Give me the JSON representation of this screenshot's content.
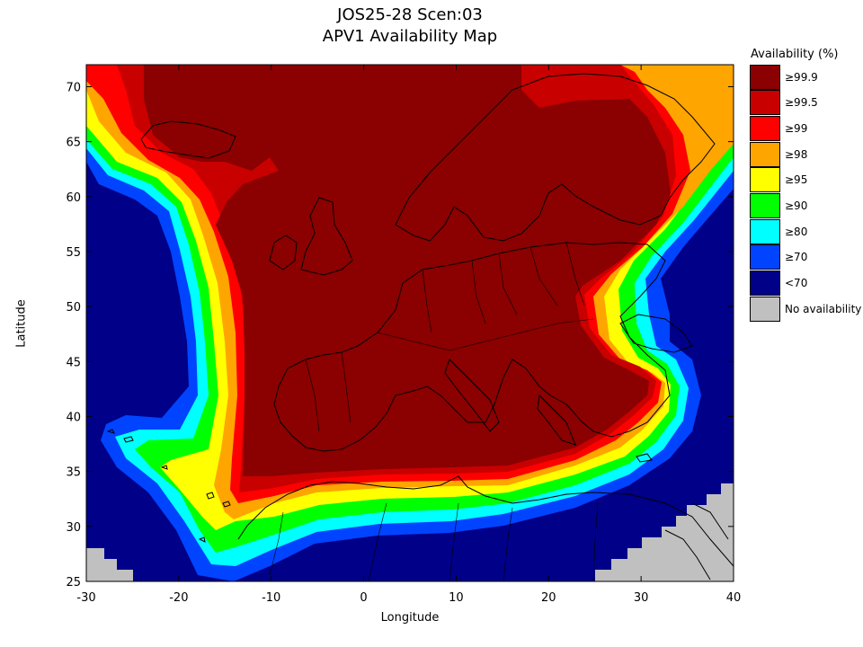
{
  "title_line1": "JOS25-28 Scen:03",
  "title_line2": "APV1 Availability Map",
  "xlabel": "Longitude",
  "ylabel": "Latitude",
  "legend": {
    "title": "Availability (%)",
    "items": [
      {
        "label": "≥99.9",
        "color": "#8b0000"
      },
      {
        "label": "≥99.5",
        "color": "#c80000"
      },
      {
        "label": "≥99",
        "color": "#ff0000"
      },
      {
        "label": "≥98",
        "color": "#ffa500"
      },
      {
        "label": "≥95",
        "color": "#ffff00"
      },
      {
        "label": "≥90",
        "color": "#00ff00"
      },
      {
        "label": "≥80",
        "color": "#00ffff"
      },
      {
        "label": "≥70",
        "color": "#0044ff"
      },
      {
        "label": "<70",
        "color": "#000088"
      },
      {
        "label": "No availability",
        "color": "#c0c0c0"
      }
    ]
  },
  "map_extent": {
    "lon_min": -30,
    "lon_max": 40,
    "lat_min": 25,
    "lat_max": 72
  },
  "x_ticks": [
    -30,
    -20,
    -10,
    0,
    10,
    20,
    30,
    40
  ],
  "y_ticks": [
    25,
    30,
    35,
    40,
    45,
    50,
    55,
    60,
    65,
    70
  ]
}
